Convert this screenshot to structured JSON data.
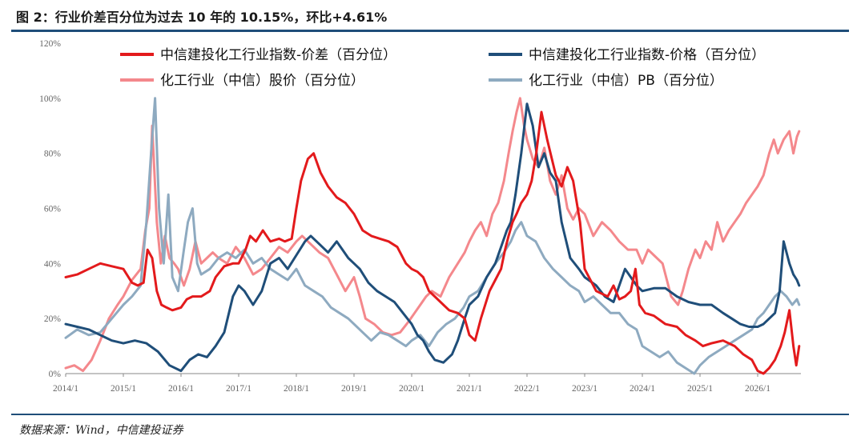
{
  "title": "图 2：行业价差百分位为过去 10 年的 10.15%，环比+4.61%",
  "source": "数据来源：Wind，中信建投证券",
  "chart_data": {
    "type": "line",
    "title": "图 2：行业价差百分位为过去 10 年的 10.15%，环比+4.61%",
    "xlabel": "",
    "ylabel": "",
    "x_ticks": [
      "2014/1",
      "2015/1",
      "2016/1",
      "2017/1",
      "2018/1",
      "2019/1",
      "2020/1",
      "2021/1",
      "2022/1",
      "2023/1",
      "2024/1",
      "2025/1",
      "2026/1"
    ],
    "y_ticks": [
      "0%",
      "20%",
      "40%",
      "60%",
      "80%",
      "100%",
      "120%"
    ],
    "ylim": [
      0,
      120
    ],
    "xlim": [
      2014.0,
      2026.75
    ],
    "legend_position": "top",
    "series": [
      {
        "name": "中信建投化工行业指数-价差（百分位）",
        "color": "#e31a1c",
        "width": 3,
        "x": [
          2014.0,
          2014.2,
          2014.4,
          2014.6,
          2014.8,
          2015.0,
          2015.15,
          2015.25,
          2015.35,
          2015.42,
          2015.5,
          2015.58,
          2015.66,
          2015.75,
          2015.85,
          2016.0,
          2016.1,
          2016.2,
          2016.35,
          2016.5,
          2016.6,
          2016.75,
          2016.9,
          2017.0,
          2017.12,
          2017.2,
          2017.3,
          2017.42,
          2017.55,
          2017.7,
          2017.8,
          2017.92,
          2018.0,
          2018.08,
          2018.2,
          2018.3,
          2018.42,
          2018.55,
          2018.7,
          2018.85,
          2019.0,
          2019.15,
          2019.3,
          2019.45,
          2019.6,
          2019.75,
          2019.9,
          2020.0,
          2020.1,
          2020.2,
          2020.3,
          2020.4,
          2020.55,
          2020.65,
          2020.8,
          2020.92,
          2021.0,
          2021.1,
          2021.2,
          2021.35,
          2021.45,
          2021.55,
          2021.62,
          2021.68,
          2021.75,
          2021.82,
          2021.9,
          2022.0,
          2022.08,
          2022.16,
          2022.25,
          2022.35,
          2022.5,
          2022.6,
          2022.7,
          2022.8,
          2022.92,
          2023.0,
          2023.2,
          2023.4,
          2023.5,
          2023.6,
          2023.7,
          2023.8,
          2023.88,
          2023.95,
          2024.05,
          2024.2,
          2024.4,
          2024.6,
          2024.75,
          2024.92,
          2025.05,
          2025.2,
          2025.4,
          2025.6,
          2025.75,
          2025.9,
          2026.0,
          2026.1,
          2026.2,
          2026.3,
          2026.4,
          2026.47,
          2026.55,
          2026.62,
          2026.67,
          2026.72
        ],
        "y": [
          35,
          36,
          38,
          40,
          39,
          38,
          33,
          32,
          33,
          45,
          42,
          30,
          25,
          24,
          23,
          24,
          27,
          28,
          28,
          30,
          35,
          39,
          40,
          40,
          45,
          50,
          48,
          52,
          48,
          49,
          48,
          49,
          60,
          70,
          78,
          80,
          73,
          68,
          64,
          62,
          58,
          52,
          50,
          49,
          48,
          46,
          40,
          38,
          37,
          35,
          30,
          28,
          25,
          23,
          22,
          20,
          14,
          12,
          20,
          30,
          34,
          38,
          45,
          50,
          55,
          58,
          62,
          65,
          70,
          80,
          95,
          85,
          72,
          68,
          75,
          70,
          55,
          38,
          30,
          28,
          32,
          27,
          28,
          30,
          38,
          25,
          22,
          21,
          18,
          17,
          14,
          12,
          10,
          11,
          12,
          10,
          7,
          5,
          1,
          0,
          2,
          5,
          10,
          15,
          23,
          10,
          3,
          10
        ]
      },
      {
        "name": "中信建投化工行业指数-价格（百分位）",
        "color": "#1f4e79",
        "width": 3,
        "x": [
          2014.0,
          2014.2,
          2014.4,
          2014.6,
          2014.8,
          2015.0,
          2015.2,
          2015.4,
          2015.6,
          2015.8,
          2016.0,
          2016.15,
          2016.3,
          2016.45,
          2016.6,
          2016.75,
          2016.9,
          2017.0,
          2017.1,
          2017.25,
          2017.4,
          2017.55,
          2017.7,
          2017.85,
          2018.0,
          2018.15,
          2018.25,
          2018.4,
          2018.55,
          2018.7,
          2018.8,
          2018.9,
          2019.0,
          2019.1,
          2019.25,
          2019.4,
          2019.55,
          2019.7,
          2019.85,
          2020.0,
          2020.1,
          2020.2,
          2020.3,
          2020.4,
          2020.55,
          2020.7,
          2020.8,
          2020.92,
          2021.0,
          2021.15,
          2021.3,
          2021.45,
          2021.55,
          2021.65,
          2021.72,
          2021.8,
          2021.9,
          2022.0,
          2022.1,
          2022.2,
          2022.3,
          2022.4,
          2022.5,
          2022.6,
          2022.75,
          2022.9,
          2023.0,
          2023.2,
          2023.35,
          2023.5,
          2023.6,
          2023.7,
          2023.8,
          2023.9,
          2024.0,
          2024.2,
          2024.4,
          2024.6,
          2024.8,
          2025.0,
          2025.2,
          2025.4,
          2025.55,
          2025.7,
          2025.85,
          2026.0,
          2026.1,
          2026.2,
          2026.3,
          2026.38,
          2026.45,
          2026.55,
          2026.62,
          2026.68,
          2026.72
        ],
        "y": [
          18,
          17,
          16,
          14,
          12,
          11,
          12,
          11,
          8,
          3,
          1,
          5,
          7,
          6,
          10,
          15,
          28,
          32,
          30,
          25,
          30,
          40,
          42,
          38,
          43,
          48,
          50,
          47,
          44,
          48,
          45,
          42,
          40,
          38,
          33,
          30,
          28,
          26,
          22,
          18,
          14,
          12,
          8,
          5,
          4,
          7,
          12,
          20,
          25,
          28,
          35,
          40,
          46,
          52,
          55,
          65,
          80,
          98,
          90,
          75,
          80,
          73,
          70,
          55,
          42,
          38,
          35,
          32,
          28,
          26,
          32,
          38,
          35,
          32,
          30,
          31,
          31,
          28,
          26,
          25,
          25,
          22,
          20,
          18,
          17,
          17,
          18,
          20,
          22,
          30,
          48,
          40,
          36,
          34,
          32
        ]
      },
      {
        "name": "化工行业（中信）股价（百分位）",
        "color": "#f4888c",
        "width": 3,
        "x": [
          2014.0,
          2014.15,
          2014.3,
          2014.45,
          2014.6,
          2014.75,
          2014.9,
          2015.0,
          2015.15,
          2015.3,
          2015.38,
          2015.45,
          2015.5,
          2015.58,
          2015.65,
          2015.72,
          2015.8,
          2015.88,
          2015.95,
          2016.05,
          2016.15,
          2016.25,
          2016.35,
          2016.45,
          2016.55,
          2016.65,
          2016.8,
          2016.95,
          2017.1,
          2017.25,
          2017.4,
          2017.55,
          2017.7,
          2017.85,
          2018.0,
          2018.1,
          2018.25,
          2018.4,
          2018.55,
          2018.7,
          2018.85,
          2019.0,
          2019.1,
          2019.2,
          2019.35,
          2019.5,
          2019.65,
          2019.8,
          2019.95,
          2020.05,
          2020.15,
          2020.25,
          2020.35,
          2020.5,
          2020.65,
          2020.8,
          2020.92,
          2021.0,
          2021.1,
          2021.2,
          2021.3,
          2021.4,
          2021.5,
          2021.6,
          2021.68,
          2021.75,
          2021.82,
          2021.88,
          2021.95,
          2022.0,
          2022.1,
          2022.2,
          2022.3,
          2022.4,
          2022.5,
          2022.6,
          2022.7,
          2022.8,
          2022.9,
          2023.0,
          2023.15,
          2023.3,
          2023.45,
          2023.6,
          2023.75,
          2023.9,
          2024.0,
          2024.1,
          2024.2,
          2024.35,
          2024.5,
          2024.62,
          2024.7,
          2024.8,
          2024.92,
          2025.0,
          2025.1,
          2025.2,
          2025.3,
          2025.4,
          2025.5,
          2025.6,
          2025.7,
          2025.8,
          2025.9,
          2026.0,
          2026.1,
          2026.2,
          2026.28,
          2026.35,
          2026.45,
          2026.55,
          2026.62,
          2026.68,
          2026.72
        ],
        "y": [
          2,
          3,
          1,
          5,
          12,
          20,
          25,
          28,
          34,
          38,
          52,
          60,
          90,
          55,
          40,
          50,
          42,
          40,
          38,
          32,
          38,
          48,
          40,
          42,
          44,
          42,
          40,
          46,
          42,
          36,
          38,
          42,
          46,
          44,
          48,
          50,
          47,
          44,
          42,
          36,
          30,
          35,
          28,
          20,
          18,
          15,
          14,
          15,
          19,
          22,
          25,
          28,
          30,
          28,
          35,
          40,
          44,
          48,
          52,
          55,
          50,
          58,
          62,
          70,
          80,
          88,
          95,
          100,
          90,
          85,
          78,
          75,
          82,
          70,
          65,
          72,
          60,
          56,
          60,
          58,
          50,
          55,
          52,
          48,
          45,
          45,
          40,
          45,
          43,
          40,
          28,
          25,
          30,
          38,
          45,
          42,
          48,
          45,
          55,
          48,
          52,
          55,
          58,
          62,
          65,
          68,
          72,
          80,
          85,
          80,
          85,
          88,
          80,
          86,
          88
        ]
      },
      {
        "name": "化工行业（中信）PB（百分位）",
        "color": "#8eaac0",
        "width": 3,
        "x": [
          2014.0,
          2014.2,
          2014.4,
          2014.6,
          2014.8,
          2015.0,
          2015.15,
          2015.3,
          2015.4,
          2015.48,
          2015.55,
          2015.62,
          2015.7,
          2015.78,
          2015.85,
          2015.95,
          2016.05,
          2016.12,
          2016.2,
          2016.28,
          2016.35,
          2016.5,
          2016.65,
          2016.8,
          2016.95,
          2017.1,
          2017.25,
          2017.4,
          2017.55,
          2017.7,
          2017.85,
          2018.0,
          2018.15,
          2018.3,
          2018.45,
          2018.6,
          2018.75,
          2018.9,
          2019.0,
          2019.15,
          2019.3,
          2019.45,
          2019.6,
          2019.75,
          2019.9,
          2020.0,
          2020.15,
          2020.3,
          2020.45,
          2020.6,
          2020.75,
          2020.9,
          2021.0,
          2021.15,
          2021.3,
          2021.45,
          2021.6,
          2021.72,
          2021.8,
          2021.9,
          2022.0,
          2022.15,
          2022.3,
          2022.45,
          2022.6,
          2022.75,
          2022.9,
          2023.0,
          2023.15,
          2023.3,
          2023.45,
          2023.6,
          2023.75,
          2023.9,
          2024.0,
          2024.15,
          2024.3,
          2024.45,
          2024.6,
          2024.75,
          2024.9,
          2025.0,
          2025.15,
          2025.3,
          2025.45,
          2025.6,
          2025.75,
          2025.9,
          2026.0,
          2026.1,
          2026.2,
          2026.3,
          2026.4,
          2026.5,
          2026.6,
          2026.68,
          2026.72
        ],
        "y": [
          13,
          16,
          14,
          15,
          20,
          25,
          28,
          32,
          55,
          80,
          100,
          60,
          40,
          65,
          35,
          30,
          45,
          55,
          60,
          40,
          36,
          38,
          42,
          44,
          42,
          45,
          40,
          42,
          38,
          36,
          34,
          38,
          32,
          30,
          28,
          24,
          22,
          20,
          18,
          15,
          12,
          15,
          14,
          12,
          10,
          12,
          14,
          10,
          15,
          18,
          20,
          24,
          28,
          30,
          35,
          40,
          44,
          48,
          52,
          55,
          50,
          48,
          42,
          38,
          35,
          32,
          30,
          26,
          28,
          25,
          22,
          22,
          18,
          16,
          10,
          8,
          6,
          8,
          4,
          2,
          0,
          3,
          6,
          8,
          10,
          12,
          14,
          16,
          20,
          22,
          25,
          28,
          30,
          28,
          25,
          27,
          25
        ]
      }
    ]
  }
}
